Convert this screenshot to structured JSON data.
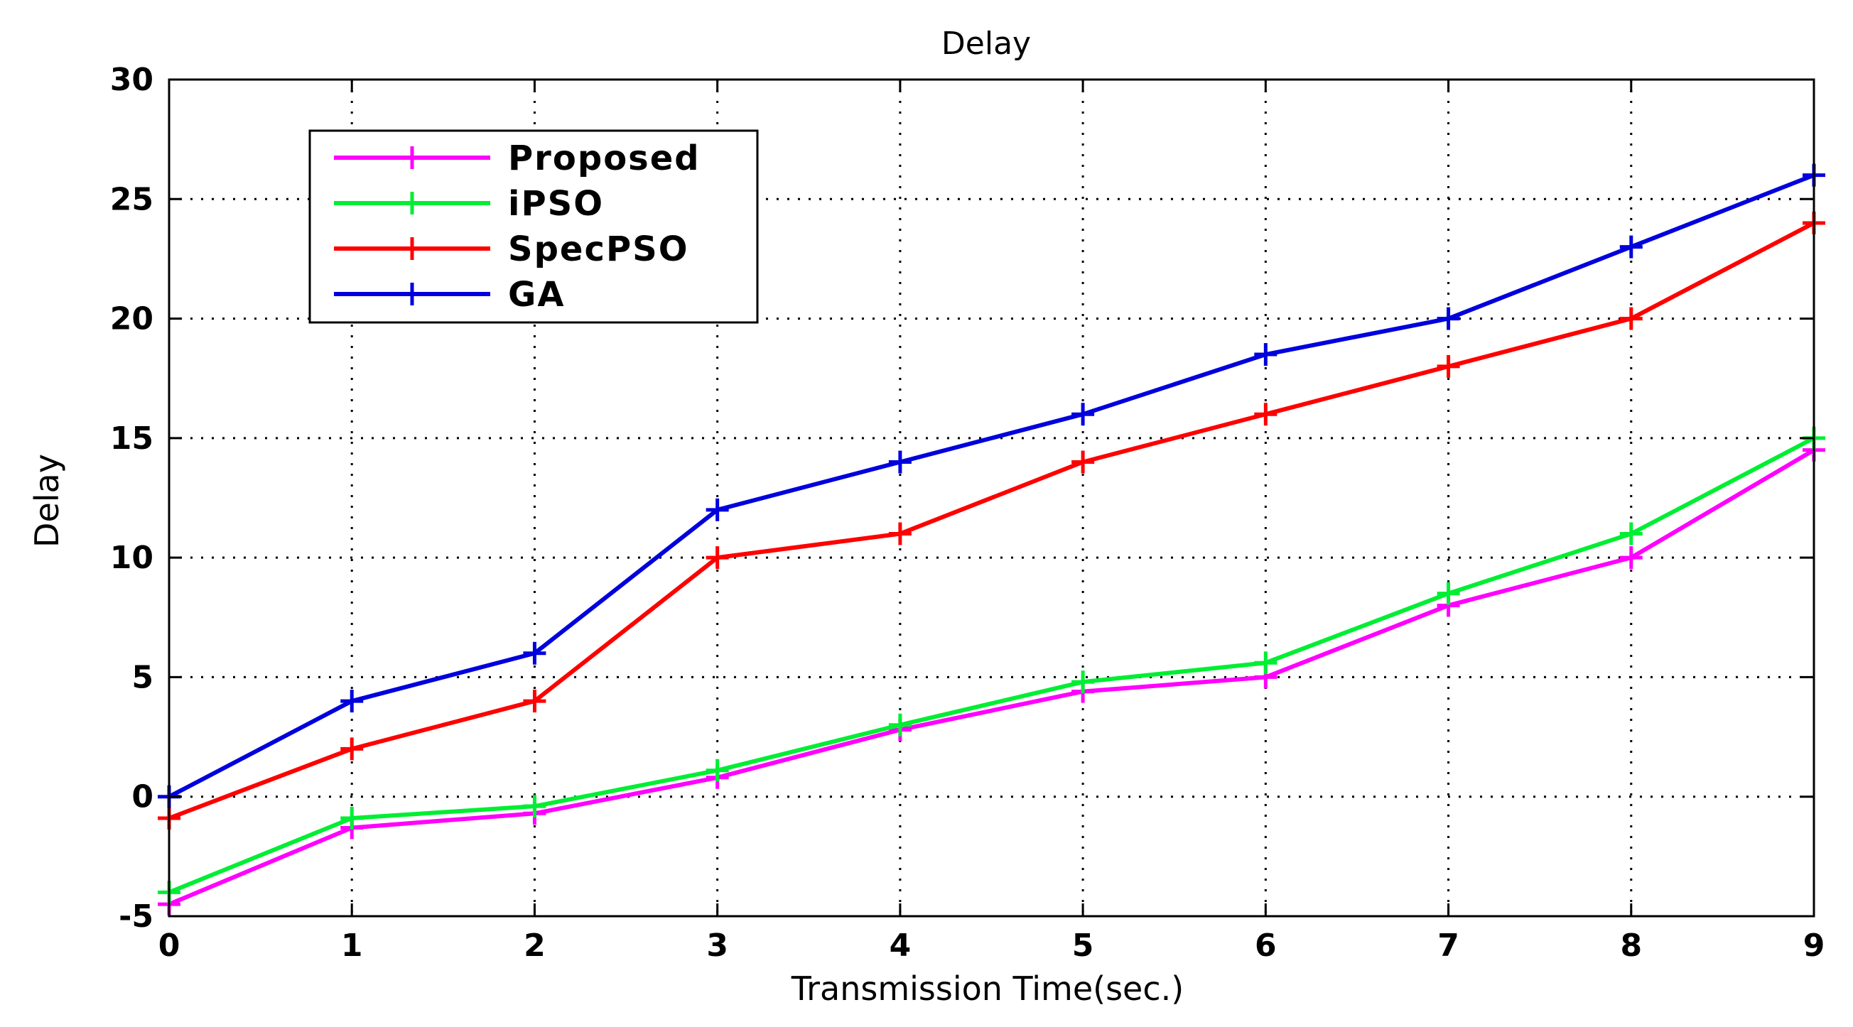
{
  "chart_data": {
    "type": "line",
    "title": "Delay",
    "xlabel": "Transmission Time(sec.)",
    "ylabel": "Delay",
    "xlim": [
      0,
      9
    ],
    "ylim": [
      -5,
      30
    ],
    "xticks": [
      0,
      1,
      2,
      3,
      4,
      5,
      6,
      7,
      8,
      9
    ],
    "yticks": [
      -5,
      0,
      5,
      10,
      15,
      20,
      25,
      30
    ],
    "grid": true,
    "legend_position": "top-left",
    "x": [
      0,
      1,
      2,
      3,
      4,
      5,
      6,
      7,
      8,
      9
    ],
    "series": [
      {
        "name": "Proposed",
        "color": "#ff00ff",
        "values": [
          -4.5,
          -1.3,
          -0.7,
          0.8,
          2.8,
          4.4,
          5.0,
          8.0,
          10.0,
          14.5
        ]
      },
      {
        "name": "iPSO",
        "color": "#00ee33",
        "values": [
          -4.0,
          -0.9,
          -0.4,
          1.1,
          3.0,
          4.8,
          5.6,
          8.5,
          11.0,
          15.0
        ]
      },
      {
        "name": "SpecPSO",
        "color": "#ff0000",
        "values": [
          -0.9,
          2.0,
          4.0,
          10.0,
          11.0,
          14.0,
          16.0,
          18.0,
          20.0,
          24.0
        ]
      },
      {
        "name": "GA",
        "color": "#0000dd",
        "values": [
          0.0,
          4.0,
          6.0,
          12.0,
          14.0,
          16.0,
          18.5,
          20.0,
          23.0,
          26.0
        ]
      }
    ]
  }
}
